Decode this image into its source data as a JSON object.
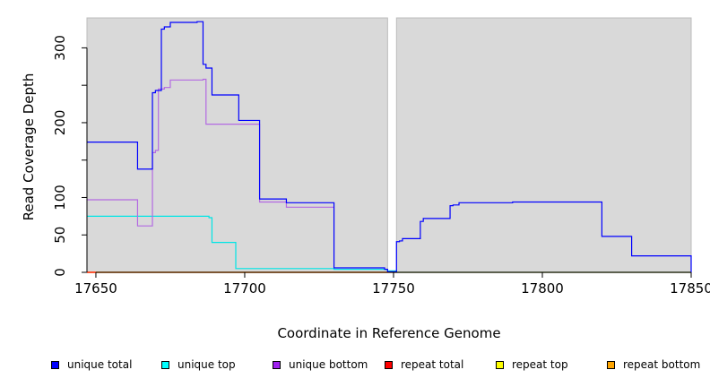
{
  "chart_data": {
    "type": "line",
    "title": "",
    "xlabel": "Coordinate in Reference Genome",
    "ylabel": "Read Coverage Depth",
    "xlim": [
      17647,
      17850
    ],
    "ylim": [
      0,
      340
    ],
    "x_ticks": [
      17650,
      17700,
      17750,
      17800,
      17850
    ],
    "x_tick_labels": [
      "17650",
      "17700",
      "17750",
      "17800",
      "17850"
    ],
    "y_ticks": [
      0,
      50,
      100,
      150,
      200,
      250,
      300
    ],
    "y_tick_labels": [
      "0",
      "50",
      "100",
      "",
      "200",
      "",
      "300"
    ],
    "gap": [
      17748,
      17751
    ],
    "grid": false,
    "legend_position": "bottom",
    "series": [
      {
        "name": "unique total",
        "color": "#0000ff",
        "x": [
          17647,
          17664,
          17669,
          17670,
          17672,
          17673,
          17675,
          17684,
          17686,
          17687,
          17689,
          17697,
          17698,
          17705,
          17714,
          17730,
          17747,
          17748,
          17751,
          17752,
          17753,
          17759,
          17760,
          17769,
          17770,
          17772,
          17790,
          17813,
          17820,
          17830,
          17850
        ],
        "y": [
          174,
          138,
          240,
          243,
          325,
          328,
          334,
          335,
          278,
          273,
          237,
          237,
          203,
          98,
          93,
          6,
          4,
          1,
          41,
          42,
          45,
          68,
          72,
          89,
          90,
          93,
          94,
          94,
          48,
          22,
          0
        ]
      },
      {
        "name": "unique top",
        "color": "#00e5e5",
        "x": [
          17647,
          17688,
          17689,
          17697,
          17730,
          17748,
          17751,
          17850
        ],
        "y": [
          75,
          73,
          40,
          5,
          4,
          2,
          0,
          0
        ]
      },
      {
        "name": "unique bottom",
        "color": "#b36ae2",
        "x": [
          17647,
          17664,
          17669,
          17670,
          17671,
          17673,
          17675,
          17686,
          17687,
          17705,
          17714,
          17730
        ],
        "y": [
          97,
          62,
          160,
          163,
          245,
          247,
          257,
          258,
          198,
          94,
          87,
          87
        ]
      },
      {
        "name": "repeat total",
        "color": "#ff0000",
        "x": [
          17647,
          17850
        ],
        "y": [
          0,
          0
        ]
      },
      {
        "name": "repeat top",
        "color": "#ffff00",
        "x": [
          17647,
          17850
        ],
        "y": [
          0,
          0
        ]
      },
      {
        "name": "repeat bottom",
        "color": "#ffa500",
        "x": [
          17647,
          17748
        ],
        "y": [
          0,
          0
        ]
      }
    ]
  },
  "legend": {
    "items": [
      {
        "label": "unique total",
        "color": "#0000ff"
      },
      {
        "label": "unique top",
        "color": "#00ffff"
      },
      {
        "label": "unique bottom",
        "color": "#a020f0"
      },
      {
        "label": "repeat total",
        "color": "#ff0000"
      },
      {
        "label": "repeat top",
        "color": "#ffff00"
      },
      {
        "label": "repeat bottom",
        "color": "#ffa500"
      }
    ]
  },
  "colors": {
    "panel_background": "#d9d9d9",
    "axis": "#000000"
  }
}
